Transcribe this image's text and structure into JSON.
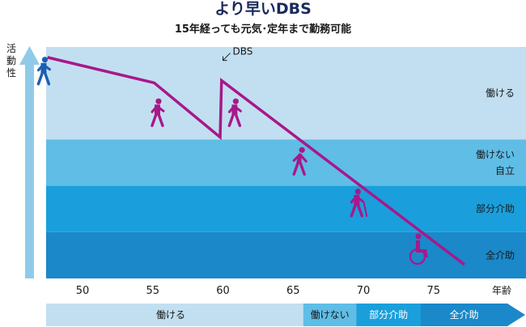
{
  "title": "より早いDBS",
  "subtitle": "15年経っても元気･定年まで勤務可能",
  "chart_data": {
    "type": "line",
    "y_axis_label": "活動性",
    "x_unit": "年齢",
    "x_ticks": [
      50,
      55,
      60,
      65,
      70,
      75
    ],
    "xlim": [
      46,
      79
    ],
    "ylim": [
      0,
      100
    ],
    "bands": [
      {
        "label": "働ける",
        "y_range": [
          60,
          100
        ],
        "color": "#c2dff1"
      },
      {
        "label": "働けない\n自立",
        "y_range": [
          40,
          60
        ],
        "color": "#5fbde6"
      },
      {
        "label": "部分介助",
        "y_range": [
          20,
          40
        ],
        "color": "#1a9fdc"
      },
      {
        "label": "全介助",
        "y_range": [
          0,
          20
        ],
        "color": "#1a88c9"
      }
    ],
    "series": [
      {
        "color": "#a8188a",
        "points": [
          {
            "x": 47.5,
            "y": 95.5
          },
          {
            "x": 55.1,
            "y": 84.5
          },
          {
            "x": 59.8,
            "y": 61.0
          },
          {
            "x": 59.9,
            "y": 85.5
          },
          {
            "x": 77.2,
            "y": 6.0
          }
        ]
      }
    ],
    "annotation": {
      "label": "DBS",
      "x": 60
    },
    "stage_bar": [
      {
        "label": "働ける",
        "from": 46,
        "to": 64.4,
        "color": "#c2dff1",
        "text_color": "#1a1a1a"
      },
      {
        "label": "働けない",
        "from": 64.4,
        "to": 68.2,
        "color": "#5fbde6",
        "text_color": "#1a1a1a"
      },
      {
        "label": "部分介助",
        "from": 68.2,
        "to": 72.8,
        "color": "#1a9fdc",
        "text_color": "#ffffff"
      },
      {
        "label": "全介助",
        "from": 72.8,
        "to": 79.0,
        "color": "#1a88c9",
        "text_color": "#ffffff"
      }
    ]
  },
  "figures": [
    {
      "icon": "walking-person-icon",
      "x": 47.2,
      "y": 87.5,
      "color": "#1a5fb4"
    },
    {
      "icon": "walking-person-icon",
      "x": 55.3,
      "y": 69.5,
      "color": "#a8188a"
    },
    {
      "icon": "walking-person-icon",
      "x": 60.8,
      "y": 69.5,
      "color": "#a8188a"
    },
    {
      "icon": "stooped-walking-person-icon",
      "x": 65.4,
      "y": 48.5,
      "color": "#a8188a"
    },
    {
      "icon": "person-with-cane-icon",
      "x": 69.5,
      "y": 30.5,
      "color": "#a8188a"
    },
    {
      "icon": "wheelchair-icon",
      "x": 73.8,
      "y": 10.5,
      "color": "#a8188a"
    }
  ]
}
